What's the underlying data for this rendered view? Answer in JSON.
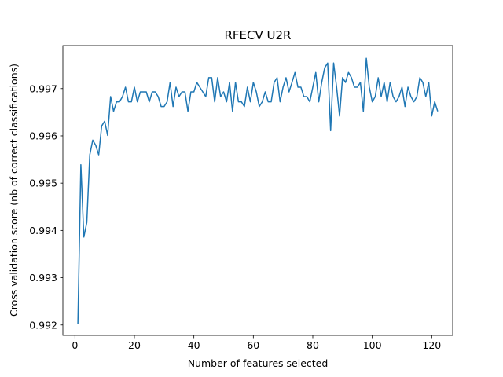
{
  "chart_data": {
    "type": "line",
    "title": "RFECV U2R",
    "xlabel": "Number of features selected",
    "ylabel": "Cross validation score (nb of correct classifications)",
    "xlim": [
      -4.05,
      127.05
    ],
    "ylim": [
      0.99178,
      0.99791
    ],
    "xticks": [
      0,
      20,
      40,
      60,
      80,
      100,
      120
    ],
    "yticks": [
      0.992,
      0.993,
      0.994,
      0.995,
      0.996,
      0.997
    ],
    "ytick_labels": [
      "0.992",
      "0.993",
      "0.994",
      "0.995",
      "0.996",
      "0.997"
    ],
    "grid": false,
    "line_color": "#1f77b4",
    "series": [
      {
        "x_start": 1,
        "x_step": 1,
        "values": [
          0.99202,
          0.99539,
          0.99386,
          0.99417,
          0.9956,
          0.99591,
          0.9958,
          0.9956,
          0.99621,
          0.99631,
          0.99601,
          0.99683,
          0.99652,
          0.99672,
          0.99672,
          0.99683,
          0.99703,
          0.99672,
          0.99672,
          0.99703,
          0.99672,
          0.99693,
          0.99693,
          0.99693,
          0.99672,
          0.99693,
          0.99693,
          0.99683,
          0.99662,
          0.99662,
          0.99672,
          0.99713,
          0.99662,
          0.99703,
          0.99683,
          0.99693,
          0.99693,
          0.99652,
          0.99693,
          0.99693,
          0.99713,
          0.99703,
          0.99693,
          0.99683,
          0.99723,
          0.99723,
          0.99672,
          0.99723,
          0.99683,
          0.99693,
          0.99672,
          0.99713,
          0.99652,
          0.99713,
          0.99672,
          0.99672,
          0.99662,
          0.99703,
          0.99672,
          0.99713,
          0.99693,
          0.99662,
          0.99672,
          0.99693,
          0.99672,
          0.99672,
          0.99713,
          0.99723,
          0.99672,
          0.99703,
          0.99723,
          0.99693,
          0.99713,
          0.99734,
          0.99703,
          0.99703,
          0.99683,
          0.99683,
          0.99672,
          0.99703,
          0.99734,
          0.99672,
          0.99713,
          0.99744,
          0.99754,
          0.99611,
          0.99754,
          0.99703,
          0.99642,
          0.99723,
          0.99713,
          0.99734,
          0.99723,
          0.99703,
          0.99703,
          0.99713,
          0.99652,
          0.99764,
          0.99703,
          0.99672,
          0.99683,
          0.99723,
          0.99683,
          0.99713,
          0.99672,
          0.99713,
          0.99683,
          0.99672,
          0.99683,
          0.99703,
          0.99662,
          0.99703,
          0.99683,
          0.99672,
          0.99683,
          0.99723,
          0.99713,
          0.99683,
          0.99713,
          0.99642,
          0.99672,
          0.99652
        ]
      }
    ]
  }
}
